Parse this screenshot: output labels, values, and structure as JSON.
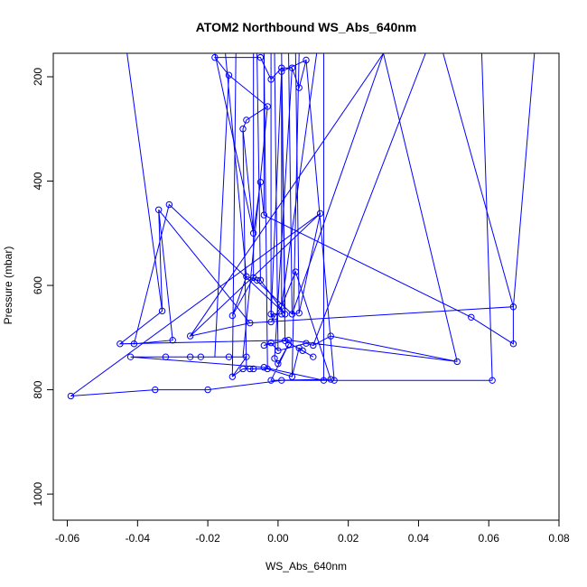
{
  "chart_data": {
    "type": "line",
    "title": "ATOM2 Northbound WS_Abs_640nm",
    "xlabel": "WS_Abs_640nm",
    "ylabel": "Pressure (mbar)",
    "xlim": [
      -0.064,
      0.08
    ],
    "ylim": [
      1050,
      155
    ],
    "y_reversed": true,
    "grid": false,
    "x_ticks": [
      -0.06,
      -0.04,
      -0.02,
      0.0,
      0.02,
      0.04,
      0.06,
      0.08
    ],
    "x_tick_labels": [
      "-0.06",
      "-0.04",
      "-0.02",
      "0.00",
      "0.02",
      "0.04",
      "0.06",
      "0.08"
    ],
    "y_ticks": [
      200,
      400,
      600,
      800,
      1000
    ],
    "y_tick_labels": [
      "200",
      "400",
      "600",
      "800",
      "1000"
    ],
    "series": [
      {
        "color": "#0000ff",
        "marker": "open-circle",
        "points": [
          [
            -0.059,
            812
          ],
          [
            -0.035,
            800
          ],
          [
            -0.02,
            800
          ],
          [
            0.001,
            782
          ],
          [
            0.061,
            782
          ],
          [
            0.016,
            782
          ],
          [
            0.013,
            782
          ],
          [
            -0.004,
            757
          ],
          [
            -0.042,
            737
          ],
          [
            -0.032,
            737
          ],
          [
            -0.025,
            737
          ],
          [
            -0.022,
            737
          ],
          [
            -0.014,
            737
          ],
          [
            -0.009,
            737
          ],
          [
            -0.013,
            775
          ],
          [
            -0.01,
            760
          ],
          [
            -0.008,
            760
          ],
          [
            -0.007,
            760
          ],
          [
            -0.003,
            760
          ],
          [
            0.004,
            775
          ],
          [
            0.006,
            720
          ],
          [
            0.007,
            725
          ],
          [
            0.01,
            737
          ],
          [
            0.002,
            706
          ],
          [
            -0.004,
            715
          ],
          [
            -0.002,
            710
          ],
          [
            0.0,
            725
          ],
          [
            0.008,
            711
          ],
          [
            0.01,
            715
          ],
          [
            0.015,
            697
          ],
          [
            0.051,
            746
          ],
          [
            0.003,
            705
          ],
          [
            -0.045,
            712
          ],
          [
            -0.033,
            649
          ],
          [
            -0.034,
            455
          ],
          [
            -0.03,
            705
          ],
          [
            -0.041,
            712
          ],
          [
            -0.031,
            445
          ],
          [
            0.002,
            655
          ],
          [
            -0.005,
            590
          ],
          [
            -0.006,
            590
          ],
          [
            -0.009,
            583
          ],
          [
            -0.013,
            658
          ],
          [
            -0.007,
            585
          ],
          [
            0.004,
            655
          ],
          [
            0.006,
            653
          ],
          [
            0.012,
            462
          ],
          [
            -0.025,
            697
          ],
          [
            -0.008,
            672
          ],
          [
            0.067,
            641
          ],
          [
            0.067,
            712
          ],
          [
            0.055,
            661
          ],
          [
            -0.004,
            465
          ],
          [
            -0.005,
            402
          ],
          [
            -0.007,
            500
          ],
          [
            -0.01,
            300
          ],
          [
            -0.009,
            283
          ],
          [
            -0.003,
            257
          ],
          [
            -0.014,
            197
          ],
          [
            -0.018,
            163
          ],
          [
            -0.005,
            163
          ],
          [
            -0.002,
            205
          ],
          [
            0.001,
            183
          ],
          [
            0.004,
            183
          ],
          [
            0.006,
            221
          ],
          [
            0.008,
            168
          ],
          [
            0.001,
            190
          ],
          [
            0.001,
            655
          ],
          [
            -0.002,
            655
          ],
          [
            -0.001,
            660
          ],
          [
            -0.002,
            670
          ],
          [
            0.001,
            640
          ],
          [
            0.005,
            574
          ],
          [
            0.015,
            780
          ],
          [
            -0.002,
            782
          ],
          [
            0.003,
            713
          ],
          [
            0.0,
            750
          ],
          [
            -0.001,
            740
          ]
        ]
      }
    ],
    "extra_segments": [
      [
        [
          0.067,
          641
        ],
        [
          0.047,
          155
        ]
      ],
      [
        [
          0.061,
          782
        ],
        [
          0.058,
          155
        ]
      ],
      [
        [
          0.073,
          155
        ],
        [
          0.067,
          641
        ]
      ],
      [
        [
          0.03,
          155
        ],
        [
          0.051,
          746
        ]
      ],
      [
        [
          -0.043,
          155
        ],
        [
          -0.033,
          649
        ]
      ],
      [
        [
          -0.034,
          455
        ],
        [
          -0.008,
          672
        ]
      ],
      [
        [
          0.012,
          462
        ],
        [
          -0.059,
          812
        ]
      ],
      [
        [
          0.004,
          655
        ],
        [
          0.03,
          155
        ]
      ],
      [
        [
          -0.007,
          500
        ],
        [
          -0.018,
          155
        ]
      ],
      [
        [
          -0.012,
          155
        ],
        [
          -0.013,
          775
        ]
      ],
      [
        [
          0.006,
          155
        ],
        [
          0.004,
          775
        ]
      ],
      [
        [
          0.013,
          155
        ],
        [
          0.013,
          782
        ]
      ],
      [
        [
          0.008,
          168
        ],
        [
          0.016,
          782
        ]
      ],
      [
        [
          0.001,
          183
        ],
        [
          0.002,
          706
        ]
      ],
      [
        [
          -0.01,
          300
        ],
        [
          -0.009,
          760
        ]
      ],
      [
        [
          -0.003,
          257
        ],
        [
          -0.01,
          737
        ]
      ],
      [
        [
          0.004,
          183
        ],
        [
          -0.001,
          740
        ]
      ],
      [
        [
          -0.001,
          155
        ],
        [
          0.0,
          725
        ]
      ],
      [
        [
          -0.007,
          155
        ],
        [
          -0.007,
          585
        ]
      ],
      [
        [
          -0.004,
          155
        ],
        [
          -0.003,
          760
        ]
      ],
      [
        [
          0.042,
          155
        ],
        [
          0.01,
          715
        ]
      ],
      [
        [
          -0.025,
          697
        ],
        [
          0.03,
          155
        ]
      ],
      [
        [
          0.001,
          640
        ],
        [
          0.011,
          155
        ]
      ],
      [
        [
          -0.009,
          583
        ],
        [
          -0.015,
          155
        ]
      ],
      [
        [
          -0.004,
          465
        ],
        [
          -0.004,
          155
        ]
      ],
      [
        [
          0.004,
          655
        ],
        [
          0.003,
          155
        ]
      ],
      [
        [
          -0.002,
          655
        ],
        [
          -0.002,
          155
        ]
      ],
      [
        [
          0.006,
          653
        ],
        [
          0.005,
          155
        ]
      ],
      [
        [
          -0.005,
          590
        ],
        [
          -0.006,
          155
        ]
      ],
      [
        [
          0.002,
          655
        ],
        [
          0.001,
          155
        ]
      ],
      [
        [
          -0.014,
          197
        ],
        [
          -0.018,
          737
        ]
      ],
      [
        [
          0.001,
          190
        ],
        [
          -0.002,
          660
        ]
      ]
    ]
  }
}
